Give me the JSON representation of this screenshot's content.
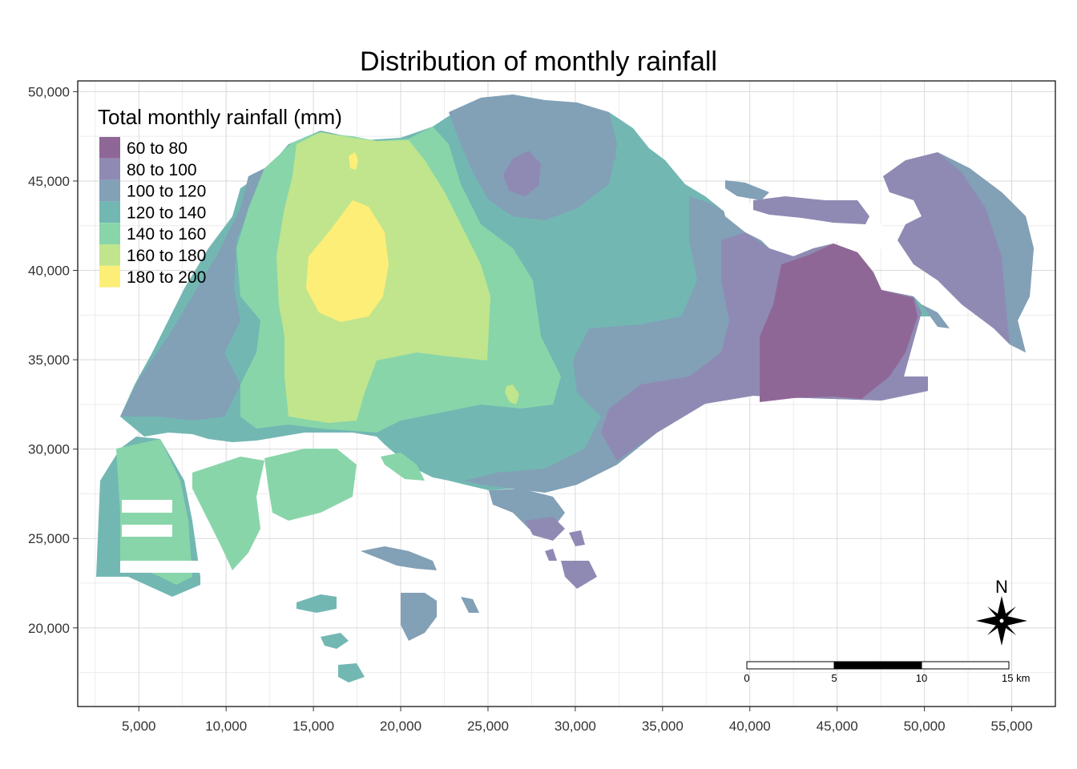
{
  "title": "Distribution of monthly rainfall",
  "legend": {
    "title": "Total monthly rainfall (mm)",
    "classes": [
      {
        "label": "60 to 80",
        "color": "#8f6796"
      },
      {
        "label": "80 to 100",
        "color": "#8f8ab3"
      },
      {
        "label": "100 to 120",
        "color": "#82a0b6"
      },
      {
        "label": "120 to 140",
        "color": "#73b7b3"
      },
      {
        "label": "140 to 160",
        "color": "#89d5aa"
      },
      {
        "label": "160 to 180",
        "color": "#c0e58d"
      },
      {
        "label": "180 to 200",
        "color": "#fdee78"
      }
    ]
  },
  "chart_data": {
    "type": "heatmap",
    "title": "Distribution of monthly rainfall",
    "x_ticks": [
      "5,000",
      "10,000",
      "15,000",
      "20,000",
      "25,000",
      "30,000",
      "35,000",
      "40,000",
      "45,000",
      "50,000",
      "55,000"
    ],
    "y_ticks": [
      "50,000",
      "45,000",
      "40,000",
      "35,000",
      "30,000",
      "25,000",
      "20,000"
    ],
    "x_tick_values": [
      5000,
      10000,
      15000,
      20000,
      25000,
      30000,
      35000,
      40000,
      45000,
      50000,
      55000
    ],
    "y_tick_values": [
      50000,
      45000,
      40000,
      35000,
      30000,
      25000,
      20000
    ],
    "xlim": [
      1500,
      57500
    ],
    "ylim": [
      15600,
      50600
    ],
    "grid": true
  },
  "scale_bar": {
    "labels": [
      "0",
      "5",
      "10",
      "15 km"
    ]
  },
  "north_arrow": {
    "label": "N"
  }
}
